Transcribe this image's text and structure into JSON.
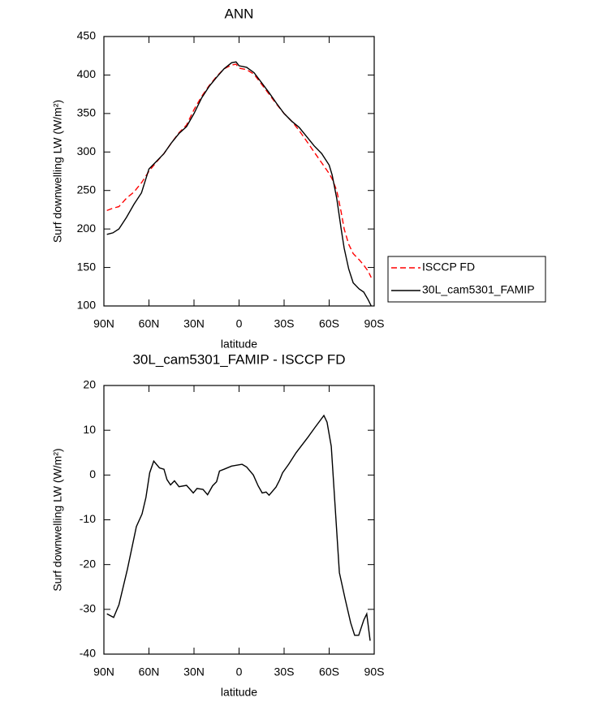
{
  "chart_data": [
    {
      "type": "line",
      "title": "ANN",
      "x_label": "latitude",
      "y_label": "Surf downwelling LW (W/m²)",
      "x": [
        88,
        84,
        80,
        75,
        70,
        65,
        60,
        55,
        50,
        45,
        40,
        35,
        30,
        25,
        20,
        15,
        10,
        5,
        2,
        0,
        -5,
        -10,
        -15,
        -20,
        -25,
        -30,
        -35,
        -40,
        -45,
        -50,
        -55,
        -60,
        -62,
        -65,
        -68,
        -70,
        -73,
        -76,
        -80,
        -83,
        -86,
        -88
      ],
      "series": [
        {
          "name": "ISCCP FD",
          "color": "#ff0000",
          "dashed": true,
          "values": [
            224,
            227,
            229,
            240,
            248,
            260,
            275,
            287,
            298,
            312,
            325,
            335,
            355,
            372,
            386,
            398,
            408,
            413,
            414,
            409,
            407,
            401,
            388,
            375,
            362,
            350,
            340,
            328,
            314,
            300,
            286,
            272,
            265,
            250,
            222,
            200,
            180,
            168,
            160,
            153,
            145,
            137
          ]
        },
        {
          "name": "30L_cam5301_FAMIP",
          "color": "#000000",
          "dashed": false,
          "values": [
            193,
            195,
            200,
            215,
            232,
            247,
            278,
            288,
            298,
            312,
            324,
            333,
            350,
            370,
            385,
            397,
            408,
            416,
            417,
            412,
            410,
            403,
            390,
            377,
            363,
            350,
            340,
            332,
            320,
            308,
            298,
            283,
            270,
            240,
            200,
            175,
            148,
            130,
            122,
            118,
            108,
            100
          ]
        }
      ],
      "xlim": [
        90,
        -90
      ],
      "xticks": [
        {
          "value": 90,
          "label": "90N"
        },
        {
          "value": 60,
          "label": "60N"
        },
        {
          "value": 30,
          "label": "30N"
        },
        0,
        {
          "value": -30,
          "label": "30S"
        },
        {
          "value": -60,
          "label": "60S"
        },
        {
          "value": -90,
          "label": "90S"
        }
      ],
      "ylim": [
        100,
        450
      ],
      "yticks": [
        100,
        150,
        200,
        250,
        300,
        350,
        400,
        450
      ],
      "legend": "right"
    },
    {
      "type": "line",
      "title": "30L_cam5301_FAMIP - ISCCP FD",
      "x_label": "latitude",
      "y_label": "Surf downwelling LW (W/m²)",
      "x": [
        88,
        83.5,
        80,
        74.3,
        68.4,
        64.6,
        62,
        59.5,
        56.8,
        53,
        50,
        48,
        45.6,
        43,
        40,
        35,
        30.5,
        28,
        24,
        21,
        17.6,
        15,
        13,
        10,
        5,
        -2,
        -5,
        -9.5,
        -12.7,
        -15.4,
        -18,
        -20,
        -24.6,
        -27,
        -29,
        -33,
        -38,
        -46,
        -50.5,
        -56.5,
        -58.6,
        -61.4,
        -66.8,
        -70.6,
        -74.3,
        -77,
        -79.7,
        -83,
        -85,
        -87.3
      ],
      "values": [
        -31,
        -31.8,
        -29,
        -21,
        -11.5,
        -8.7,
        -5,
        0.5,
        3.1,
        1.6,
        1.3,
        -1,
        -2.2,
        -1.3,
        -2.6,
        -2.3,
        -4,
        -3,
        -3.2,
        -4.4,
        -2.4,
        -1.5,
        0.9,
        1.3,
        2,
        2.4,
        1.8,
        0,
        -2.4,
        -4,
        -3.8,
        -4.5,
        -2.7,
        -1.1,
        0.5,
        2.4,
        5,
        8.5,
        10.6,
        13.3,
        11.8,
        6.4,
        -21.8,
        -27.6,
        -33,
        -35.8,
        -35.8,
        -32.4,
        -31,
        -37
      ],
      "color": "#000000",
      "xlim": [
        90,
        -90
      ],
      "xticks": [
        {
          "value": 90,
          "label": "90N"
        },
        {
          "value": 60,
          "label": "60N"
        },
        {
          "value": 30,
          "label": "30N"
        },
        0,
        {
          "value": -30,
          "label": "30S"
        },
        {
          "value": -60,
          "label": "60S"
        },
        {
          "value": -90,
          "label": "90S"
        }
      ],
      "ylim": [
        -40,
        20
      ],
      "yticks": [
        -40,
        -30,
        -20,
        -10,
        0,
        10,
        20
      ]
    }
  ]
}
